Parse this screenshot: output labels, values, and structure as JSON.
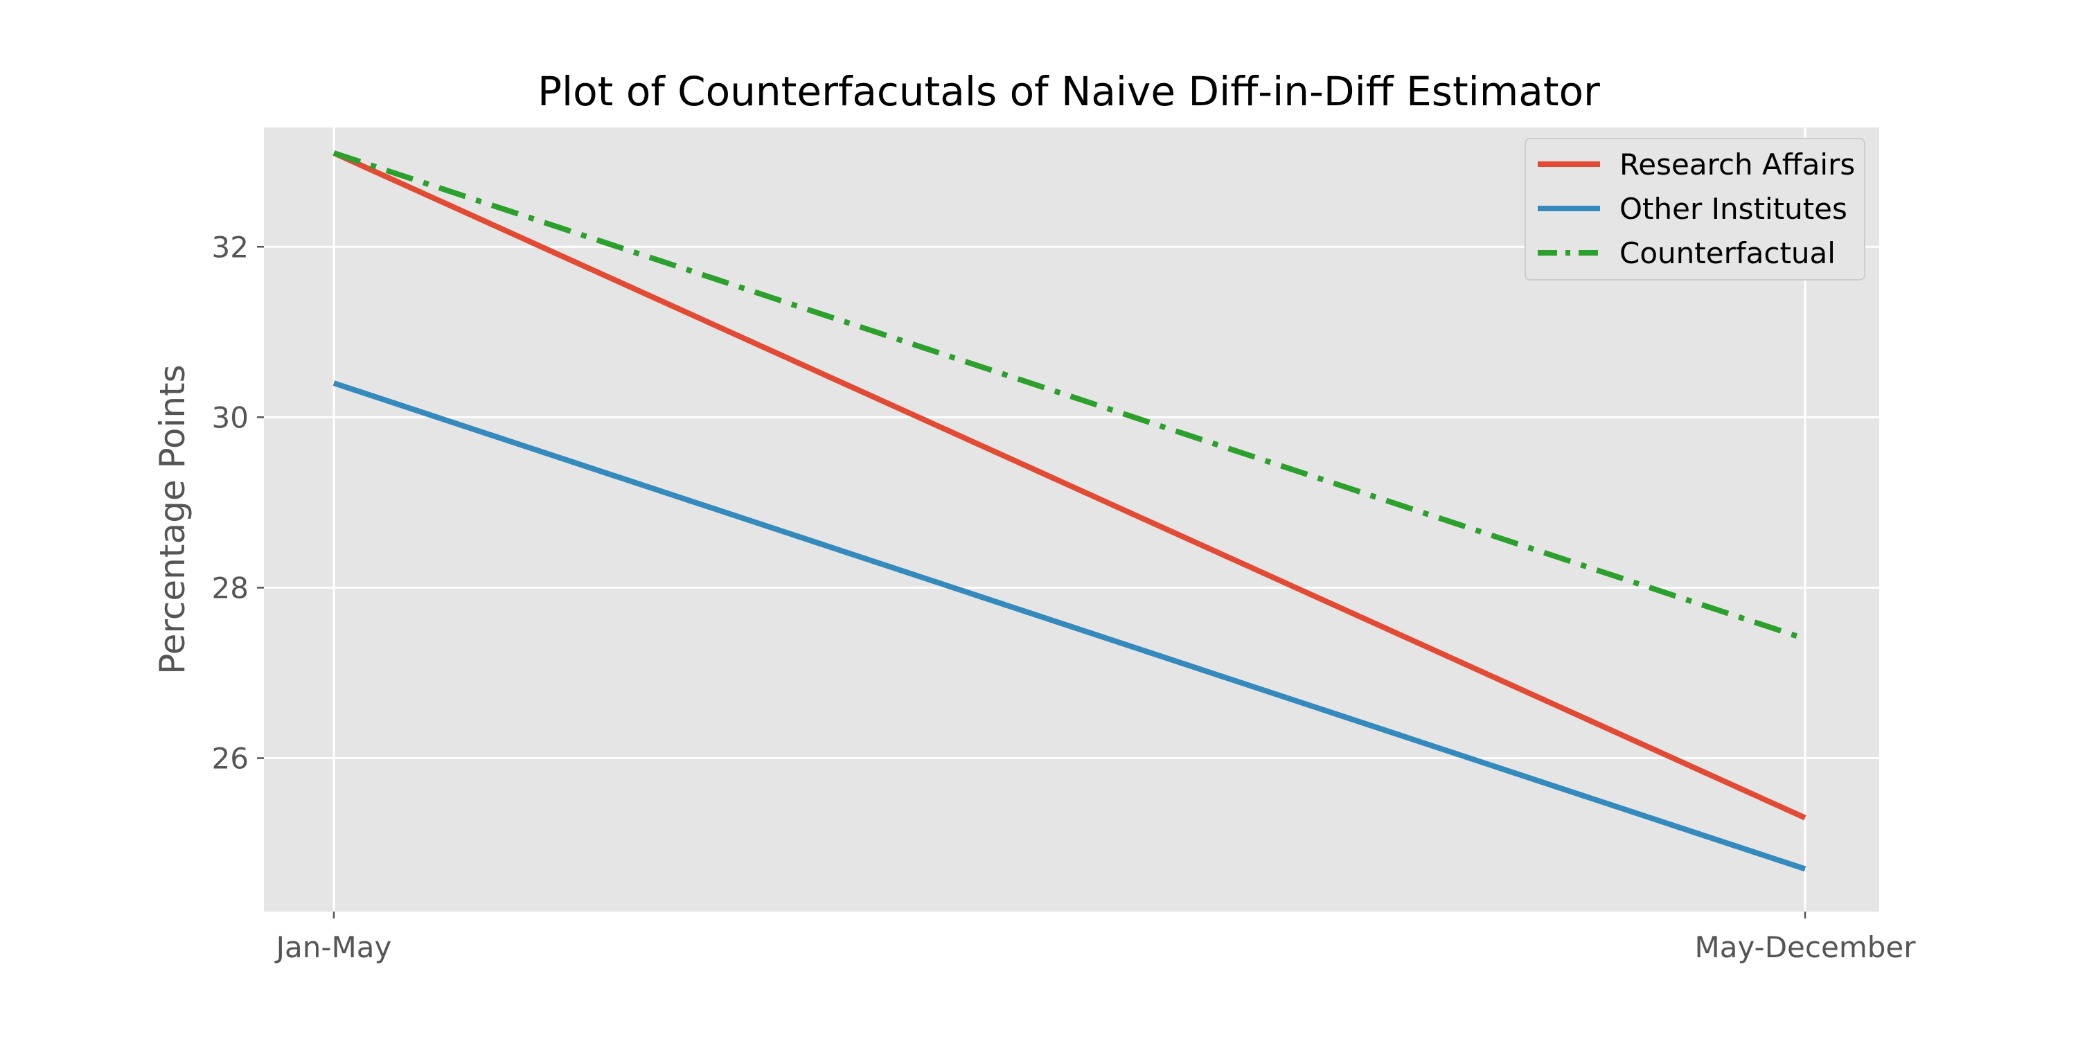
{
  "chart_data": {
    "type": "line",
    "title": "Plot of Counterfacutals of Naive Diff-in-Diff Estimator",
    "xlabel": "",
    "ylabel": "Percentage Points",
    "categories": [
      "Jan-May",
      "May-December"
    ],
    "ylim": [
      24.2,
      33.4
    ],
    "yticks": [
      26,
      28,
      30,
      32
    ],
    "ytick_labels": [
      "26",
      "28",
      "30",
      "32"
    ],
    "grid": true,
    "legend_position": "top-right",
    "series": [
      {
        "name": "Research Affairs",
        "values": [
          33.1,
          25.3
        ],
        "color": "#E24A33",
        "style": "solid"
      },
      {
        "name": "Other Institutes",
        "values": [
          30.4,
          24.7
        ],
        "color": "#348ABD",
        "style": "solid"
      },
      {
        "name": "Counterfactual",
        "values": [
          33.1,
          27.4
        ],
        "color": "#2CA02C",
        "style": "dashdot"
      }
    ],
    "background_color": "#E5E5E5",
    "grid_color": "#FFFFFF"
  }
}
